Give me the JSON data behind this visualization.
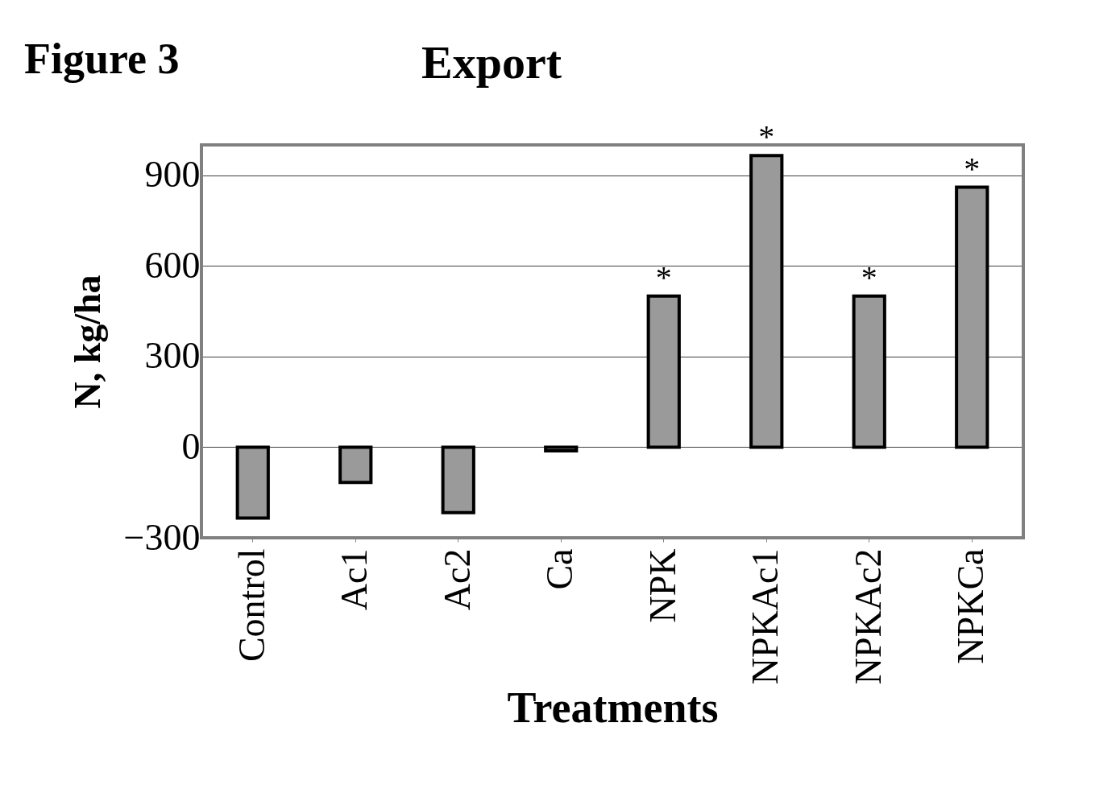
{
  "chart_data": {
    "type": "bar",
    "title": "Export",
    "xlabel": "Treatments",
    "ylabel": "N, kg/ha",
    "categories": [
      "Control",
      "Ac1",
      "Ac2",
      "Ca",
      "NPK",
      "NPKAc1",
      "NPKAc2",
      "NPKCa"
    ],
    "values": [
      -235,
      -117,
      -217,
      -12,
      500,
      965,
      500,
      860
    ],
    "color": "#9a9a9a",
    "ylim": [
      -300,
      1000
    ],
    "yticks": [
      -300,
      0,
      300,
      600,
      900
    ],
    "grid": "y",
    "annotations": [
      "Figure 3",
      {
        "text": "*",
        "x": "NPK",
        "y": 500
      },
      {
        "text": "*",
        "x": "NPKAc1",
        "y": 965
      },
      {
        "text": "*",
        "x": "NPKAc2",
        "y": 500
      },
      {
        "text": "*",
        "x": "NPKCa",
        "y": 860
      }
    ]
  }
}
